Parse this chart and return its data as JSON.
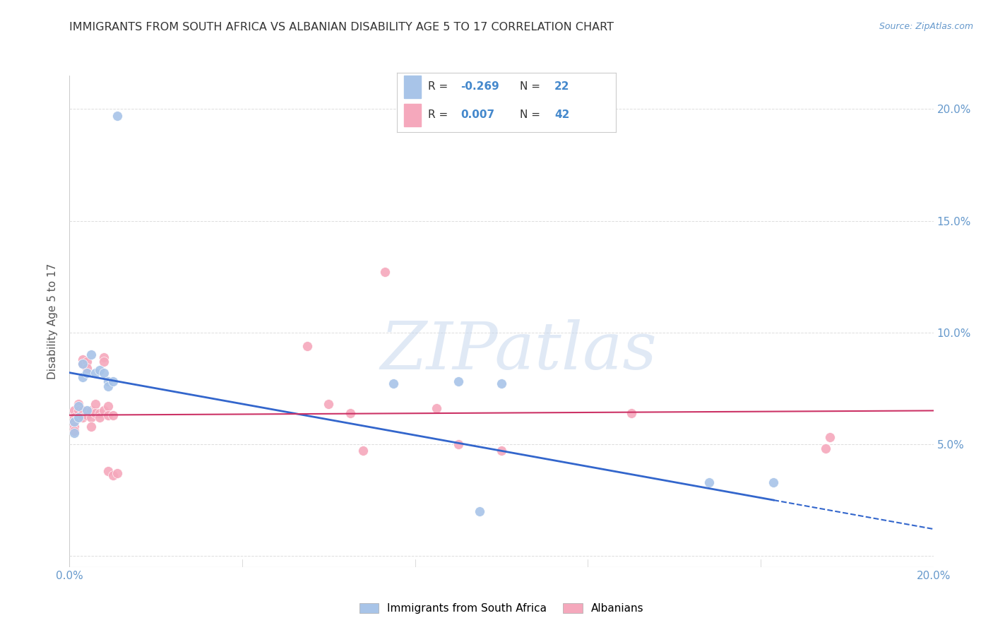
{
  "title": "IMMIGRANTS FROM SOUTH AFRICA VS ALBANIAN DISABILITY AGE 5 TO 17 CORRELATION CHART",
  "source": "Source: ZipAtlas.com",
  "ylabel": "Disability Age 5 to 17",
  "xlim": [
    0.0,
    0.2
  ],
  "ylim": [
    -0.005,
    0.215
  ],
  "series1_name": "Immigrants from South Africa",
  "series1_color": "#a8c4e8",
  "series1_R": -0.269,
  "series1_N": 22,
  "series2_name": "Albanians",
  "series2_color": "#f5a8bc",
  "series2_R": 0.007,
  "series2_N": 42,
  "series1_x": [
    0.001,
    0.001,
    0.002,
    0.002,
    0.003,
    0.003,
    0.004,
    0.004,
    0.005,
    0.006,
    0.007,
    0.008,
    0.009,
    0.009,
    0.01,
    0.011,
    0.075,
    0.09,
    0.095,
    0.1,
    0.148,
    0.163
  ],
  "series1_y": [
    0.06,
    0.055,
    0.062,
    0.067,
    0.086,
    0.08,
    0.082,
    0.065,
    0.09,
    0.082,
    0.083,
    0.082,
    0.078,
    0.076,
    0.078,
    0.197,
    0.077,
    0.078,
    0.02,
    0.077,
    0.033,
    0.033
  ],
  "series2_x": [
    0.001,
    0.001,
    0.001,
    0.001,
    0.001,
    0.002,
    0.002,
    0.002,
    0.003,
    0.003,
    0.003,
    0.003,
    0.004,
    0.004,
    0.004,
    0.005,
    0.005,
    0.005,
    0.006,
    0.006,
    0.007,
    0.007,
    0.008,
    0.008,
    0.008,
    0.009,
    0.009,
    0.009,
    0.01,
    0.01,
    0.011,
    0.055,
    0.06,
    0.065,
    0.068,
    0.073,
    0.085,
    0.09,
    0.1,
    0.13,
    0.175,
    0.176
  ],
  "series2_y": [
    0.065,
    0.062,
    0.06,
    0.058,
    0.056,
    0.068,
    0.065,
    0.062,
    0.088,
    0.086,
    0.065,
    0.062,
    0.087,
    0.084,
    0.063,
    0.065,
    0.062,
    0.058,
    0.068,
    0.064,
    0.064,
    0.062,
    0.089,
    0.087,
    0.065,
    0.067,
    0.063,
    0.038,
    0.036,
    0.063,
    0.037,
    0.094,
    0.068,
    0.064,
    0.047,
    0.127,
    0.066,
    0.05,
    0.047,
    0.064,
    0.048,
    0.053
  ],
  "watermark_text": "ZIPatlas",
  "trend1_x0": 0.0,
  "trend1_y0": 0.082,
  "trend1_x1": 0.2,
  "trend1_y1": 0.012,
  "trend1_solid_end_x": 0.163,
  "trend2_x0": 0.0,
  "trend2_y0": 0.063,
  "trend2_x1": 0.2,
  "trend2_y1": 0.065,
  "trend1_color": "#3366cc",
  "trend2_color": "#cc3366",
  "background_color": "#ffffff",
  "grid_color": "#dddddd",
  "title_color": "#333333",
  "axis_color": "#6699cc",
  "legend_text_color": "#333333",
  "legend_val_color": "#4488cc",
  "marker_size": 100
}
